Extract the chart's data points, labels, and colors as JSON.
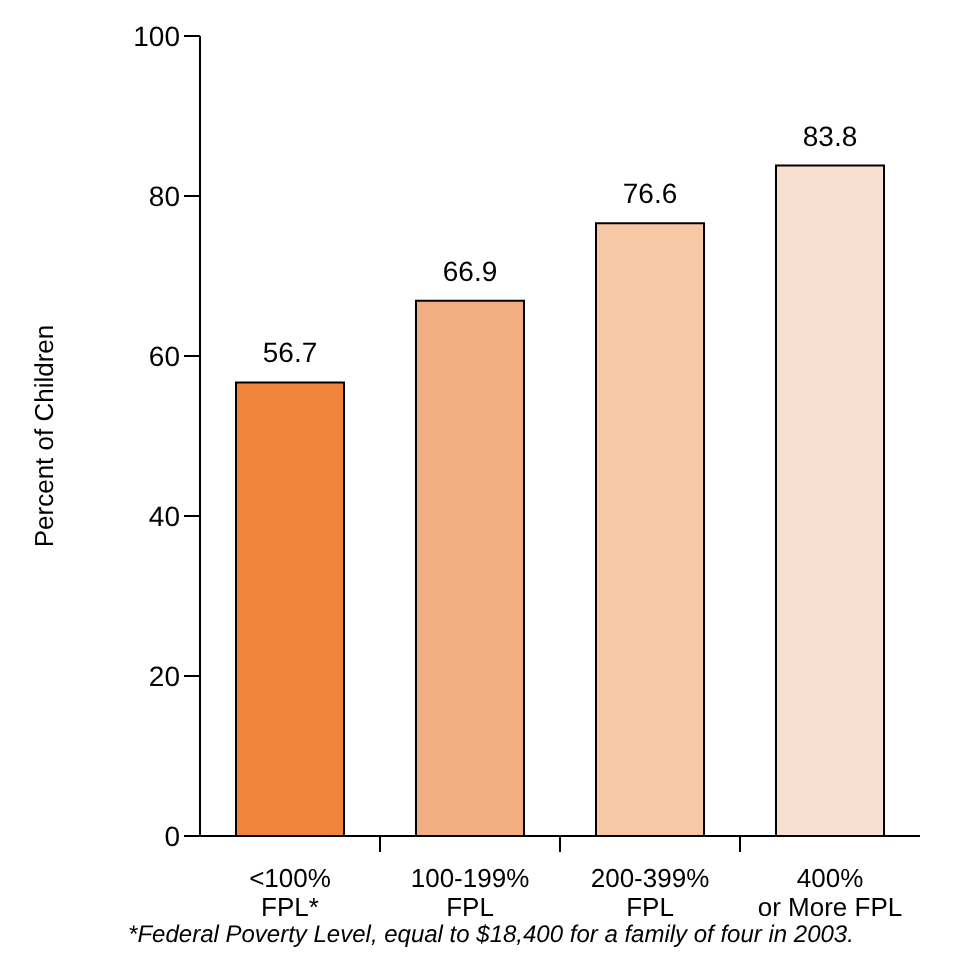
{
  "chart_data": {
    "type": "bar",
    "ylabel": "Percent of Children",
    "categories": [
      "<100%\nFPL*",
      "100-199%\nFPL",
      "200-399%\nFPL",
      "400%\nor More FPL"
    ],
    "values": [
      56.7,
      66.9,
      76.6,
      83.8
    ],
    "colors": [
      "#f0843a",
      "#f2ae80",
      "#f7c8a6",
      "#f8e0d0"
    ],
    "ylim": [
      0,
      100
    ],
    "yticks": [
      0,
      20,
      40,
      60,
      80,
      100
    ],
    "grid": false,
    "legend": false,
    "data_labels": true,
    "annotations": [
      "*Federal Poverty Level, equal to $18,400 for a family of four in 2003."
    ]
  }
}
